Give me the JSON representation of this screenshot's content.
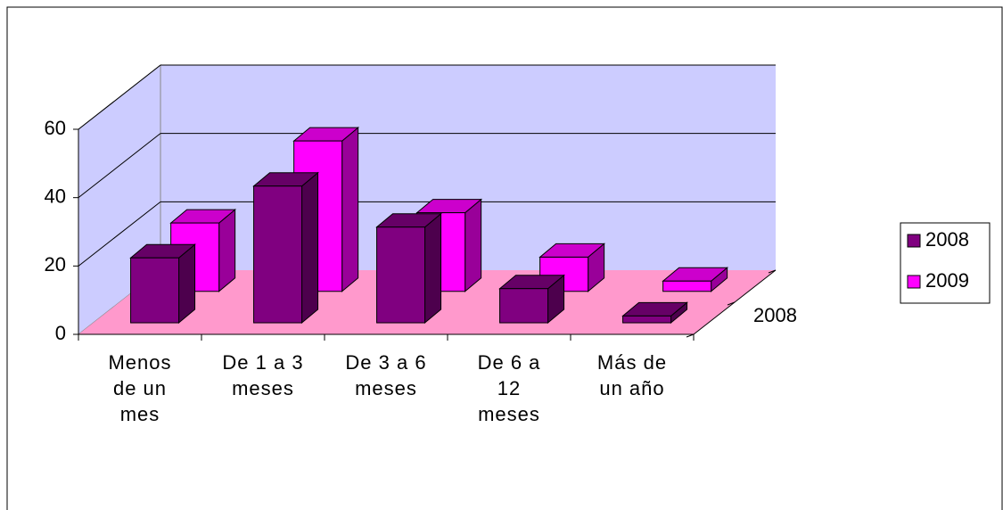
{
  "chart_data": {
    "type": "bar3d",
    "categories": [
      "Menos de un mes",
      "De 1 a 3 meses",
      "De 3 a 6 meses",
      "De 6 a 12 meses",
      "Más de un año"
    ],
    "series": [
      {
        "name": "2008",
        "color": "#800080",
        "values": [
          19,
          40,
          28,
          10,
          2
        ]
      },
      {
        "name": "2009",
        "color": "#FF00FF",
        "values": [
          20,
          44,
          23,
          10,
          3
        ]
      }
    ],
    "depth_label": "2008",
    "ylim": [
      0,
      60
    ],
    "yticks": [
      0,
      20,
      40,
      60
    ],
    "grid": true,
    "legend": "right"
  }
}
